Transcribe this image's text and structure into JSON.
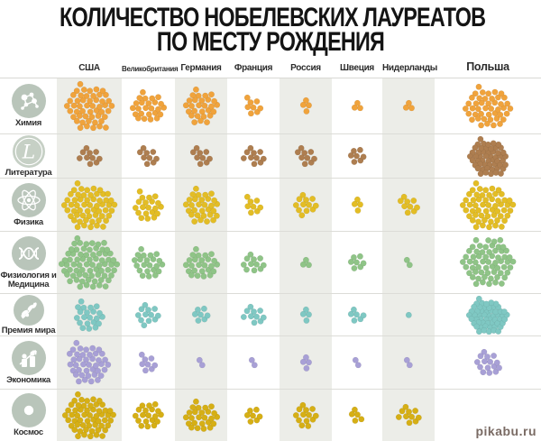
{
  "title": {
    "line1": "КОЛИЧЕСТВО НОБЕЛЕВСКИХ ЛАУРЕАТОВ",
    "line2": "ПО МЕСТУ РОЖДЕНИЯ"
  },
  "columns": [
    "США",
    "Великобритания",
    "Германия",
    "Франция",
    "Россия",
    "Швеция",
    "Нидерланды",
    "Польша"
  ],
  "rows": [
    {
      "label": "Химия",
      "icon": "molecule-icon",
      "color": "#f0a33c",
      "counts": [
        50,
        25,
        28,
        8,
        4,
        3,
        3,
        44
      ]
    },
    {
      "label": "Литература",
      "icon": "literature-icon",
      "color": "#ae7e50",
      "counts": [
        10,
        9,
        9,
        10,
        9,
        7,
        0,
        52
      ]
    },
    {
      "label": "Физика",
      "icon": "atom-icon",
      "color": "#e3bd25",
      "counts": [
        56,
        20,
        30,
        8,
        12,
        4,
        9,
        55
      ]
    },
    {
      "label": "Физиология и Медицина",
      "icon": "dna-icon",
      "color": "#8fc487",
      "counts": [
        70,
        22,
        25,
        11,
        3,
        7,
        2,
        60
      ]
    },
    {
      "label": "Премия мира",
      "icon": "olive-branch-icon",
      "color": "#7fc8c3",
      "counts": [
        21,
        12,
        7,
        10,
        4,
        6,
        1,
        55
      ]
    },
    {
      "label": "Экономика",
      "icon": "economics-icon",
      "color": "#a8a0d6",
      "counts": [
        40,
        8,
        2,
        2,
        4,
        2,
        2,
        15
      ]
    },
    {
      "label": "Космос",
      "icon": "planet-icon",
      "color": "#d6af15",
      "counts": [
        55,
        19,
        25,
        7,
        13,
        5,
        10,
        0
      ]
    }
  ],
  "colors": {
    "icon_circle": "#b9c5ba",
    "shaded_column_bg": "#ecede8",
    "grid_line": "#dcdcd7",
    "title_text": "#141414"
  },
  "watermark": "pikabu.ru",
  "chart_data": {
    "type": "table",
    "title": "КОЛИЧЕСТВО НОБЕЛЕВСКИХ ЛАУРЕАТОВ ПО МЕСТУ РОЖДЕНИЯ",
    "representation": "dot-matrix, 1 dot = 1 laureate",
    "categories": [
      "США",
      "Великобритания",
      "Германия",
      "Франция",
      "Россия",
      "Швеция",
      "Нидерланды",
      "Польша"
    ],
    "series": [
      {
        "name": "Химия",
        "color": "#f0a33c",
        "values": [
          50,
          25,
          28,
          8,
          4,
          3,
          3,
          44
        ]
      },
      {
        "name": "Литература",
        "color": "#ae7e50",
        "values": [
          10,
          9,
          9,
          10,
          9,
          7,
          0,
          52
        ]
      },
      {
        "name": "Физика",
        "color": "#e3bd25",
        "values": [
          56,
          20,
          30,
          8,
          12,
          4,
          9,
          55
        ]
      },
      {
        "name": "Физиология и Медицина",
        "color": "#8fc487",
        "values": [
          70,
          22,
          25,
          11,
          3,
          7,
          2,
          60
        ]
      },
      {
        "name": "Премия мира",
        "color": "#7fc8c3",
        "values": [
          21,
          12,
          7,
          10,
          4,
          6,
          1,
          55
        ]
      },
      {
        "name": "Экономика",
        "color": "#a8a0d6",
        "values": [
          40,
          8,
          2,
          2,
          4,
          2,
          2,
          15
        ]
      },
      {
        "name": "Космос",
        "color": "#d6af15",
        "values": [
          55,
          19,
          25,
          7,
          13,
          5,
          10,
          0
        ]
      }
    ]
  }
}
